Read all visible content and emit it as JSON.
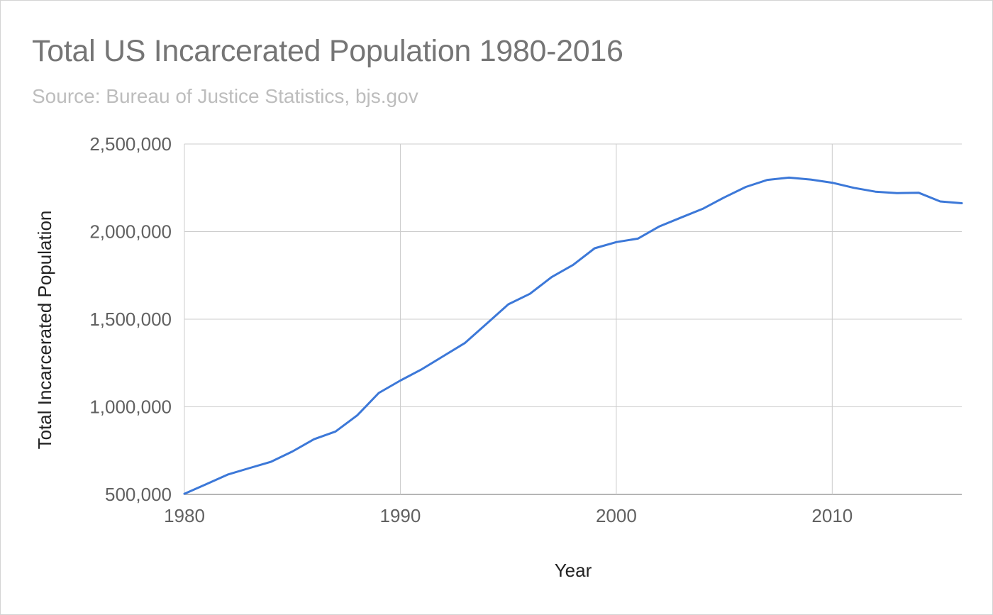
{
  "chart_data": {
    "type": "line",
    "title": "Total US Incarcerated Population 1980-2016",
    "subtitle": "Source: Bureau of Justice Statistics, bjs.gov",
    "xlabel": "Year",
    "ylabel": "Total Incarcerated Population",
    "xlim": [
      1980,
      2016
    ],
    "ylim": [
      500000,
      2500000
    ],
    "x_ticks": [
      1980,
      1990,
      2000,
      2010
    ],
    "x_tick_labels": [
      "1980",
      "1990",
      "2000",
      "2010"
    ],
    "y_ticks": [
      500000,
      1000000,
      1500000,
      2000000,
      2500000
    ],
    "y_tick_labels": [
      "500,000",
      "1,000,000",
      "1,500,000",
      "2,000,000",
      "2,500,000"
    ],
    "grid": true,
    "legend": "none",
    "x": [
      1980,
      1981,
      1982,
      1983,
      1984,
      1985,
      1986,
      1987,
      1988,
      1989,
      1990,
      1991,
      1992,
      1993,
      1994,
      1995,
      1996,
      1997,
      1998,
      1999,
      2000,
      2001,
      2002,
      2003,
      2004,
      2005,
      2006,
      2007,
      2008,
      2009,
      2010,
      2011,
      2012,
      2013,
      2014,
      2015,
      2016
    ],
    "series": [
      {
        "values": [
          503586,
          558000,
          613000,
          650000,
          686000,
          745000,
          815000,
          859000,
          951000,
          1079000,
          1150000,
          1215000,
          1290000,
          1365000,
          1475000,
          1585000,
          1645000,
          1740000,
          1810000,
          1905000,
          1940000,
          1960000,
          2030000,
          2080000,
          2130000,
          2195000,
          2255000,
          2295000,
          2308000,
          2297000,
          2279000,
          2250000,
          2228000,
          2220000,
          2222000,
          2172000,
          2162000
        ],
        "color": "#3c78d8"
      }
    ]
  },
  "colors": {
    "line": "#3c78d8",
    "grid": "#cccccc",
    "baseline": "#9e9e9e"
  }
}
